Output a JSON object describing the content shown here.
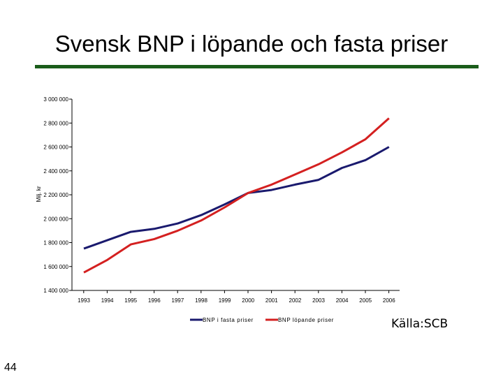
{
  "slide": {
    "title": "Svensk BNP i löpande och fasta priser",
    "source": "Källa:SCB",
    "page_number": "44",
    "rule_color": "#1a5c1a"
  },
  "chart_data": {
    "type": "line",
    "title": "",
    "xlabel": "",
    "ylabel": "Milj. kr",
    "x": [
      "1993",
      "1994",
      "1995",
      "1996",
      "1997",
      "1998",
      "1999",
      "2000",
      "2001",
      "2002",
      "2003",
      "2004",
      "2005",
      "2006"
    ],
    "ylim": [
      1400000,
      3000000
    ],
    "yticks": [
      1400000,
      1600000,
      1800000,
      2000000,
      2200000,
      2400000,
      2600000,
      2800000,
      3000000
    ],
    "ytick_labels": [
      "1 400 000",
      "1 600 000",
      "1 800 000",
      "2 000 000",
      "2 200 000",
      "2 400 000",
      "2 600 000",
      "2 800 000",
      "3 000 000"
    ],
    "grid": false,
    "legend_position": "bottom",
    "series": [
      {
        "name": "BNP i fasta priser",
        "color": "#1a1a6e",
        "values": [
          1750000,
          1820000,
          1890000,
          1915000,
          1960000,
          2030000,
          2120000,
          2215000,
          2240000,
          2285000,
          2325000,
          2425000,
          2490000,
          2600000
        ]
      },
      {
        "name": "BNP löpande priser",
        "color": "#d42020",
        "values": [
          1550000,
          1655000,
          1785000,
          1830000,
          1900000,
          1985000,
          2095000,
          2215000,
          2285000,
          2370000,
          2455000,
          2555000,
          2665000,
          2840000
        ]
      }
    ]
  }
}
